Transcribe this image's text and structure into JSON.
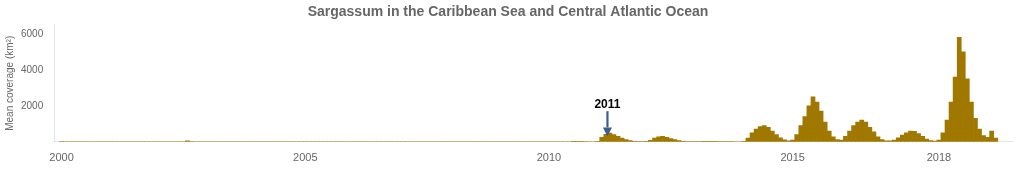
{
  "chart_data": {
    "type": "bar",
    "title": "Sargassum in the Caribbean Sea and Central Atlantic Ocean",
    "y_label": "Mean coverage (km²)",
    "color": "#A07800",
    "grid": false,
    "xlim": [
      1999.85,
      2019.5
    ],
    "xticks": [
      2000,
      2005,
      2010,
      2015,
      2018
    ],
    "ylim": [
      0,
      6500
    ],
    "yticks": [
      {
        "value": 0,
        "label": ""
      },
      2000,
      4000,
      6000
    ],
    "annotations": [
      {
        "text": "2011",
        "x": 2011.2,
        "y": 300,
        "text_x": 2011.2,
        "text_y": 1700,
        "color": "#3A5F8A"
      }
    ],
    "x": [
      2000.0,
      2000.083,
      2000.167,
      2000.25,
      2000.333,
      2000.417,
      2000.5,
      2000.583,
      2000.667,
      2000.75,
      2000.833,
      2000.917,
      2001.0,
      2001.083,
      2001.167,
      2001.25,
      2001.333,
      2001.417,
      2001.5,
      2001.583,
      2001.667,
      2001.75,
      2001.833,
      2001.917,
      2002.0,
      2002.083,
      2002.167,
      2002.25,
      2002.333,
      2002.417,
      2002.5,
      2002.583,
      2002.667,
      2002.75,
      2002.833,
      2002.917,
      2003.0,
      2003.083,
      2003.167,
      2003.25,
      2003.333,
      2003.417,
      2003.5,
      2003.583,
      2003.667,
      2003.75,
      2003.833,
      2003.917,
      2004.0,
      2004.083,
      2004.167,
      2004.25,
      2004.333,
      2004.417,
      2004.5,
      2004.583,
      2004.667,
      2004.75,
      2004.833,
      2004.917,
      2005.0,
      2005.083,
      2005.167,
      2005.25,
      2005.333,
      2005.417,
      2005.5,
      2005.583,
      2005.667,
      2005.75,
      2005.833,
      2005.917,
      2006.0,
      2006.083,
      2006.167,
      2006.25,
      2006.333,
      2006.417,
      2006.5,
      2006.583,
      2006.667,
      2006.75,
      2006.833,
      2006.917,
      2007.0,
      2007.083,
      2007.167,
      2007.25,
      2007.333,
      2007.417,
      2007.5,
      2007.583,
      2007.667,
      2007.75,
      2007.833,
      2007.917,
      2008.0,
      2008.083,
      2008.167,
      2008.25,
      2008.333,
      2008.417,
      2008.5,
      2008.583,
      2008.667,
      2008.75,
      2008.833,
      2008.917,
      2009.0,
      2009.083,
      2009.167,
      2009.25,
      2009.333,
      2009.417,
      2009.5,
      2009.583,
      2009.667,
      2009.75,
      2009.833,
      2009.917,
      2010.0,
      2010.083,
      2010.167,
      2010.25,
      2010.333,
      2010.417,
      2010.5,
      2010.583,
      2010.667,
      2010.75,
      2010.833,
      2010.917,
      2011.0,
      2011.083,
      2011.167,
      2011.25,
      2011.333,
      2011.417,
      2011.5,
      2011.583,
      2011.667,
      2011.75,
      2011.833,
      2011.917,
      2012.0,
      2012.083,
      2012.167,
      2012.25,
      2012.333,
      2012.417,
      2012.5,
      2012.583,
      2012.667,
      2012.75,
      2012.833,
      2012.917,
      2013.0,
      2013.083,
      2013.167,
      2013.25,
      2013.333,
      2013.417,
      2013.5,
      2013.583,
      2013.667,
      2013.75,
      2013.833,
      2013.917,
      2014.0,
      2014.083,
      2014.167,
      2014.25,
      2014.333,
      2014.417,
      2014.5,
      2014.583,
      2014.667,
      2014.75,
      2014.833,
      2014.917,
      2015.0,
      2015.083,
      2015.167,
      2015.25,
      2015.333,
      2015.417,
      2015.5,
      2015.583,
      2015.667,
      2015.75,
      2015.833,
      2015.917,
      2016.0,
      2016.083,
      2016.167,
      2016.25,
      2016.333,
      2016.417,
      2016.5,
      2016.583,
      2016.667,
      2016.75,
      2016.833,
      2016.917,
      2017.0,
      2017.083,
      2017.167,
      2017.25,
      2017.333,
      2017.417,
      2017.5,
      2017.583,
      2017.667,
      2017.75,
      2017.833,
      2017.917,
      2018.0,
      2018.083,
      2018.167,
      2018.25,
      2018.333,
      2018.417,
      2018.5,
      2018.583,
      2018.667,
      2018.75,
      2018.833,
      2018.917,
      2019.0,
      2019.083,
      2019.167
    ],
    "values": [
      8,
      5,
      5,
      5,
      5,
      5,
      5,
      5,
      5,
      5,
      5,
      5,
      5,
      5,
      5,
      5,
      5,
      5,
      5,
      5,
      5,
      5,
      5,
      5,
      5,
      5,
      5,
      5,
      5,
      5,
      5,
      60,
      10,
      5,
      5,
      5,
      5,
      5,
      5,
      5,
      5,
      5,
      5,
      5,
      5,
      5,
      5,
      5,
      5,
      5,
      5,
      5,
      5,
      5,
      5,
      5,
      5,
      5,
      5,
      5,
      5,
      5,
      5,
      5,
      5,
      5,
      5,
      5,
      5,
      5,
      5,
      5,
      5,
      5,
      5,
      5,
      5,
      5,
      5,
      5,
      5,
      5,
      5,
      5,
      5,
      5,
      5,
      5,
      5,
      5,
      5,
      5,
      5,
      5,
      5,
      5,
      5,
      5,
      5,
      5,
      5,
      5,
      5,
      5,
      5,
      5,
      5,
      5,
      5,
      5,
      5,
      5,
      5,
      5,
      5,
      5,
      5,
      5,
      5,
      5,
      5,
      5,
      5,
      5,
      5,
      5,
      20,
      30,
      20,
      10,
      5,
      5,
      20,
      250,
      420,
      480,
      400,
      300,
      200,
      130,
      70,
      30,
      15,
      8,
      20,
      80,
      200,
      280,
      300,
      250,
      180,
      120,
      70,
      30,
      15,
      8,
      10,
      10,
      20,
      30,
      25,
      20,
      15,
      10,
      8,
      8,
      5,
      5,
      30,
      200,
      500,
      700,
      850,
      900,
      800,
      600,
      400,
      220,
      110,
      60,
      100,
      400,
      900,
      1400,
      2000,
      2500,
      2200,
      1700,
      1100,
      600,
      280,
      130,
      100,
      300,
      600,
      900,
      1100,
      1200,
      1100,
      800,
      550,
      280,
      130,
      60,
      50,
      100,
      220,
      380,
      500,
      600,
      580,
      450,
      300,
      150,
      70,
      40,
      100,
      500,
      1200,
      2200,
      3600,
      5800,
      5000,
      3500,
      2200,
      1300,
      700,
      350,
      250,
      600,
      200
    ]
  }
}
